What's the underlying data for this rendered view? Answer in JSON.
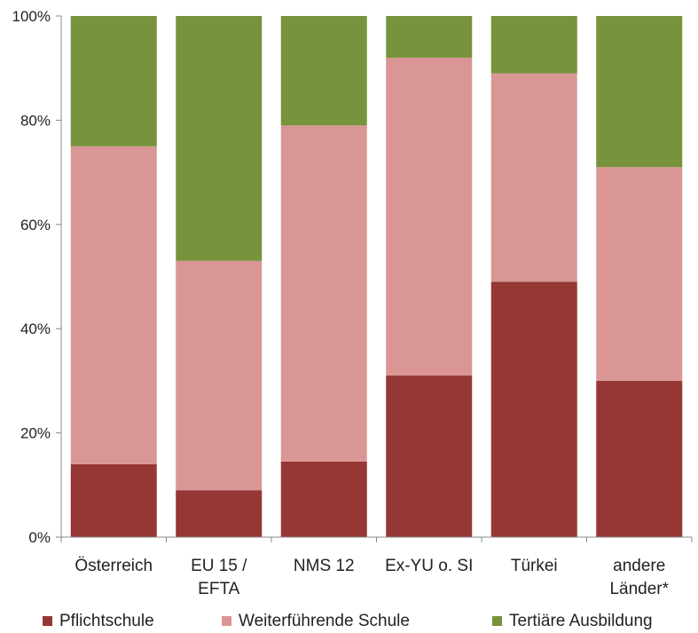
{
  "chart_data": {
    "type": "bar",
    "stacked": true,
    "categories": [
      [
        "Österreich"
      ],
      [
        "EU 15 /",
        "EFTA"
      ],
      [
        "NMS 12"
      ],
      [
        "Ex-YU o. SI"
      ],
      [
        "Türkei"
      ],
      [
        "andere",
        "Länder*"
      ]
    ],
    "series": [
      {
        "name": "Pflichtschule",
        "color": "#953735",
        "values": [
          14,
          9,
          14.5,
          31,
          49,
          30
        ]
      },
      {
        "name": "Weiterführende Schule",
        "color": "#d99694",
        "values": [
          61,
          44,
          64.5,
          61,
          40,
          41
        ]
      },
      {
        "name": "Tertiäre Ausbildung",
        "color": "#77933c",
        "values": [
          25,
          47,
          21,
          8,
          11,
          29
        ]
      }
    ],
    "y_ticks": [
      "0%",
      "20%",
      "40%",
      "60%",
      "80%",
      "100%"
    ],
    "ylim": [
      0,
      100
    ],
    "grid": false,
    "legend_position": "bottom"
  }
}
